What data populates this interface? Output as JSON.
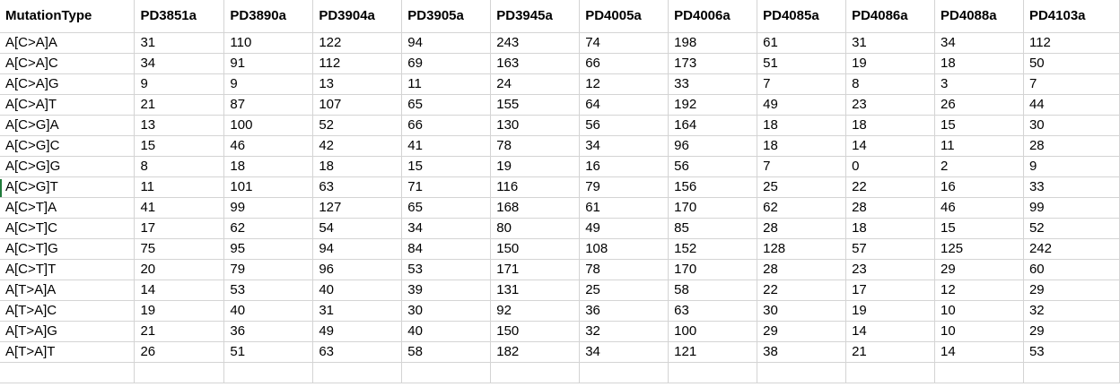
{
  "spreadsheet": {
    "columns": [
      "MutationType",
      "PD3851a",
      "PD3890a",
      "PD3904a",
      "PD3905a",
      "PD3945a",
      "PD4005a",
      "PD4006a",
      "PD4085a",
      "PD4086a",
      "PD4088a",
      "PD4103a"
    ],
    "rows": [
      [
        "A[C>A]A",
        "31",
        "110",
        "122",
        "94",
        "243",
        "74",
        "198",
        "61",
        "31",
        "34",
        "112"
      ],
      [
        "A[C>A]C",
        "34",
        "91",
        "112",
        "69",
        "163",
        "66",
        "173",
        "51",
        "19",
        "18",
        "50"
      ],
      [
        "A[C>A]G",
        "9",
        "9",
        "13",
        "11",
        "24",
        "12",
        "33",
        "7",
        "8",
        "3",
        "7"
      ],
      [
        "A[C>A]T",
        "21",
        "87",
        "107",
        "65",
        "155",
        "64",
        "192",
        "49",
        "23",
        "26",
        "44"
      ],
      [
        "A[C>G]A",
        "13",
        "100",
        "52",
        "66",
        "130",
        "56",
        "164",
        "18",
        "18",
        "15",
        "30"
      ],
      [
        "A[C>G]C",
        "15",
        "46",
        "42",
        "41",
        "78",
        "34",
        "96",
        "18",
        "14",
        "11",
        "28"
      ],
      [
        "A[C>G]G",
        "8",
        "18",
        "18",
        "15",
        "19",
        "16",
        "56",
        "7",
        "0",
        "2",
        "9"
      ],
      [
        "A[C>G]T",
        "11",
        "101",
        "63",
        "71",
        "116",
        "79",
        "156",
        "25",
        "22",
        "16",
        "33"
      ],
      [
        "A[C>T]A",
        "41",
        "99",
        "127",
        "65",
        "168",
        "61",
        "170",
        "62",
        "28",
        "46",
        "99"
      ],
      [
        "A[C>T]C",
        "17",
        "62",
        "54",
        "34",
        "80",
        "49",
        "85",
        "28",
        "18",
        "15",
        "52"
      ],
      [
        "A[C>T]G",
        "75",
        "95",
        "94",
        "84",
        "150",
        "108",
        "152",
        "128",
        "57",
        "125",
        "242"
      ],
      [
        "A[C>T]T",
        "20",
        "79",
        "96",
        "53",
        "171",
        "78",
        "170",
        "28",
        "23",
        "29",
        "60"
      ],
      [
        "A[T>A]A",
        "14",
        "53",
        "40",
        "39",
        "131",
        "25",
        "58",
        "22",
        "17",
        "12",
        "29"
      ],
      [
        "A[T>A]C",
        "19",
        "40",
        "31",
        "30",
        "92",
        "36",
        "63",
        "30",
        "19",
        "10",
        "32"
      ],
      [
        "A[T>A]G",
        "21",
        "36",
        "49",
        "40",
        "150",
        "32",
        "100",
        "29",
        "14",
        "10",
        "29"
      ],
      [
        "A[T>A]T",
        "26",
        "51",
        "63",
        "58",
        "182",
        "34",
        "121",
        "38",
        "21",
        "14",
        "53"
      ],
      [
        "",
        "",
        "",
        "",
        "",
        "",
        "",
        "",
        "",
        "",
        "",
        ""
      ]
    ],
    "colors": {
      "gridline": "#d4d4d4",
      "text": "#000000",
      "background": "#ffffff",
      "accent": "#1f7a3a"
    }
  }
}
